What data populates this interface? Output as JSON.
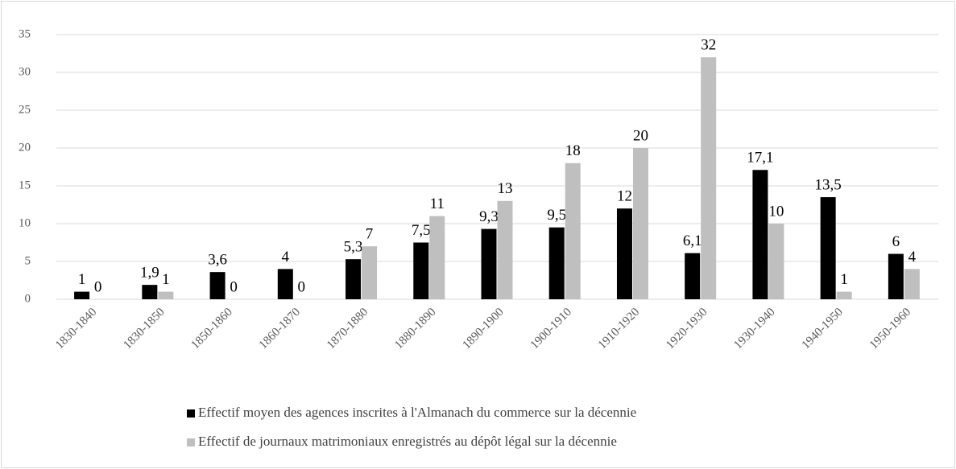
{
  "chart_data": {
    "type": "bar",
    "categories": [
      "1830-1840",
      "1830-1850",
      "1850-1860",
      "1860-1870",
      "1870-1880",
      "1880-1890",
      "1890-1900",
      "1900-1910",
      "1910-1920",
      "1920-1930",
      "1930-1940",
      "1940-1950",
      "1950-1960"
    ],
    "series": [
      {
        "name": "Effectif moyen des agences inscrites à l'Almanach du commerce sur la décennie",
        "color": "#000000",
        "values": [
          1,
          1.9,
          3.6,
          4,
          5.3,
          7.5,
          9.3,
          9.5,
          12,
          6.1,
          17.1,
          13.5,
          6
        ],
        "value_labels": [
          "1",
          "1,9",
          "3,6",
          "4",
          "5,3",
          "7,5",
          "9,3",
          "9,5",
          "12",
          "6,1",
          "17,1",
          "13,5",
          "6"
        ]
      },
      {
        "name": "Effectif de journaux matrimoniaux enregistrés au dépôt légal sur la décennie",
        "color": "#bfbfbf",
        "values": [
          0,
          1,
          0,
          0,
          7,
          11,
          13,
          18,
          20,
          32,
          10,
          1,
          4
        ]
      }
    ],
    "ylim": [
      0,
      35
    ],
    "yticks": [
      0,
      5,
      10,
      15,
      20,
      25,
      30,
      35
    ],
    "grid": true,
    "legend": "bottom"
  }
}
